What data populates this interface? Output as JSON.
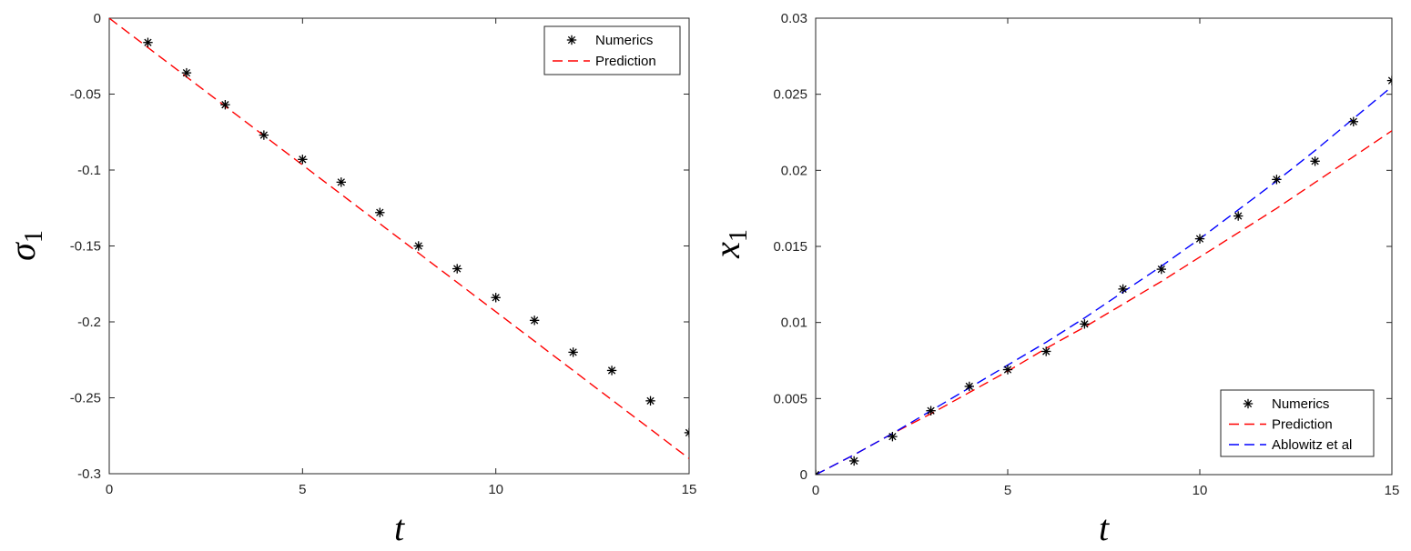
{
  "chart_data": [
    {
      "type": "scatter+line",
      "title": "",
      "xlabel": "t",
      "ylabel": "σ",
      "ylabel_subscript": "1",
      "xlim": [
        0,
        15
      ],
      "ylim": [
        -0.3,
        0
      ],
      "xticks": [
        0,
        5,
        10,
        15
      ],
      "xtick_labels": [
        "0",
        "5",
        "10",
        "15"
      ],
      "yticks": [
        0,
        -0.05,
        -0.1,
        -0.15,
        -0.2,
        -0.25,
        -0.3
      ],
      "ytick_labels": [
        "0",
        "-0.05",
        "-0.1",
        "-0.15",
        "-0.2",
        "-0.25",
        "-0.3"
      ],
      "grid": false,
      "legend_position": "top-right",
      "series": [
        {
          "name": "Numerics",
          "style": "markers",
          "marker": "asterisk",
          "color": "#000000",
          "x": [
            1,
            2,
            3,
            4,
            5,
            6,
            7,
            8,
            9,
            10,
            11,
            12,
            13,
            14,
            15
          ],
          "y": [
            -0.016,
            -0.036,
            -0.057,
            -0.077,
            -0.093,
            -0.108,
            -0.128,
            -0.15,
            -0.165,
            -0.184,
            -0.199,
            -0.22,
            -0.232,
            -0.252,
            -0.273
          ]
        },
        {
          "name": "Prediction",
          "style": "dashed",
          "color": "#ff0000",
          "x": [
            0,
            15
          ],
          "y": [
            0,
            -0.29
          ]
        }
      ]
    },
    {
      "type": "scatter+line",
      "title": "",
      "xlabel": "t",
      "ylabel": "x",
      "ylabel_subscript": "1",
      "xlim": [
        0,
        15
      ],
      "ylim": [
        0,
        0.03
      ],
      "xticks": [
        0,
        5,
        10,
        15
      ],
      "xtick_labels": [
        "0",
        "5",
        "10",
        "15"
      ],
      "yticks": [
        0,
        0.005,
        0.01,
        0.015,
        0.02,
        0.025,
        0.03
      ],
      "ytick_labels": [
        "0",
        "0.005",
        "0.01",
        "0.015",
        "0.02",
        "0.025",
        "0.03"
      ],
      "grid": false,
      "legend_position": "bottom-right",
      "series": [
        {
          "name": "Numerics",
          "style": "markers",
          "marker": "asterisk",
          "color": "#000000",
          "x": [
            0,
            1,
            2,
            3,
            4,
            5,
            6,
            7,
            8,
            9,
            10,
            11,
            12,
            13,
            14,
            15
          ],
          "y": [
            0,
            0.0009,
            0.0025,
            0.0042,
            0.0058,
            0.0069,
            0.0081,
            0.0099,
            0.0122,
            0.0135,
            0.0155,
            0.017,
            0.0194,
            0.0206,
            0.0232,
            0.0259
          ]
        },
        {
          "name": "Prediction",
          "style": "dashed",
          "color": "#ff0000",
          "x": [
            0,
            1,
            2,
            3,
            4,
            5,
            6,
            7,
            8,
            9,
            10,
            11,
            12,
            13,
            14,
            15
          ],
          "y": [
            0,
            0.0013,
            0.0027,
            0.004,
            0.0054,
            0.0068,
            0.0083,
            0.0097,
            0.0112,
            0.0127,
            0.0143,
            0.0159,
            0.0175,
            0.0192,
            0.0209,
            0.0226
          ]
        },
        {
          "name": "Ablowitz et al",
          "style": "dashed",
          "color": "#0000ff",
          "x": [
            0,
            1,
            2,
            3,
            4,
            5,
            6,
            7,
            8,
            9,
            10,
            11,
            12,
            13,
            14,
            15
          ],
          "y": [
            0,
            0.0013,
            0.0027,
            0.0042,
            0.0057,
            0.0072,
            0.0087,
            0.0103,
            0.012,
            0.0137,
            0.0155,
            0.0174,
            0.0193,
            0.0213,
            0.0234,
            0.0255
          ]
        }
      ]
    }
  ]
}
